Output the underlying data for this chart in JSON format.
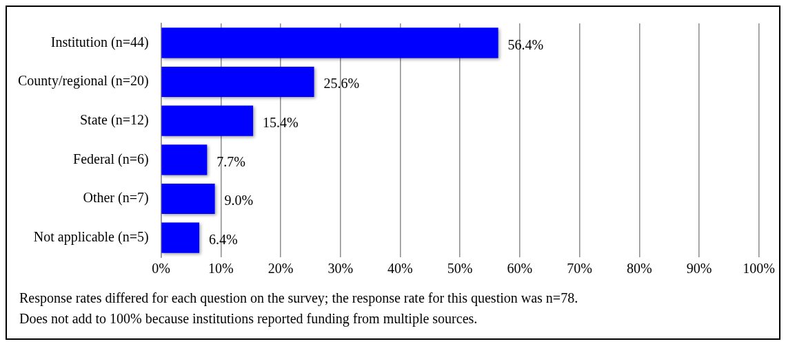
{
  "chart_data": {
    "type": "bar",
    "orientation": "horizontal",
    "categories": [
      "Institution (n=44)",
      "County/regional (n=20)",
      "State (n=12)",
      "Federal (n=6)",
      "Other (n=7)",
      "Not applicable (n=5)"
    ],
    "values": [
      56.4,
      25.6,
      15.4,
      7.7,
      9.0,
      6.4
    ],
    "value_labels": [
      "56.4%",
      "25.6%",
      "15.4%",
      "7.7%",
      "9.0%",
      "6.4%"
    ],
    "color": "#0000ff",
    "xlim": [
      0,
      100
    ],
    "xticks": [
      {
        "value": 0,
        "label": "0%"
      },
      {
        "value": 10,
        "label": "10%"
      },
      {
        "value": 20,
        "label": "20%"
      },
      {
        "value": 30,
        "label": "30%"
      },
      {
        "value": 40,
        "label": "40%"
      },
      {
        "value": 50,
        "label": "50%"
      },
      {
        "value": 60,
        "label": "60%"
      },
      {
        "value": 70,
        "label": "70%"
      },
      {
        "value": 80,
        "label": "80%"
      },
      {
        "value": 90,
        "label": "90%"
      },
      {
        "value": 100,
        "label": "100%"
      }
    ],
    "grid": "x",
    "legend": false,
    "annotations": [
      "Response rates differed for each question on the survey; the response rate for this question was n=78.",
      "Does not add to 100% because institutions reported funding from multiple sources."
    ]
  }
}
